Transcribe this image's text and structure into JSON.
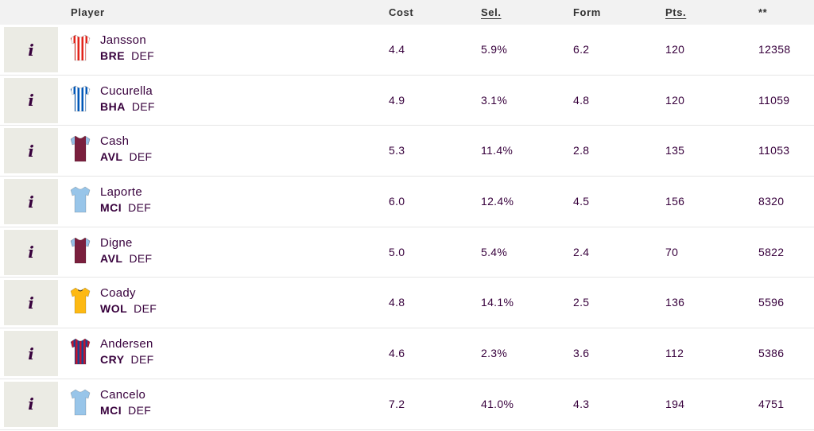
{
  "header": {
    "player": "Player",
    "cost": "Cost",
    "sel": "Sel.",
    "form": "Form",
    "pts": "Pts.",
    "sort": "**"
  },
  "info_label": "i",
  "rows": [
    {
      "name": "Jansson",
      "team": "BRE",
      "pos": "DEF",
      "cost": "4.4",
      "sel": "5.9%",
      "form": "6.2",
      "pts": "120",
      "extra": "12358",
      "kit": "stripes",
      "c1": "#e2231a",
      "c2": "#ffffff"
    },
    {
      "name": "Cucurella",
      "team": "BHA",
      "pos": "DEF",
      "cost": "4.9",
      "sel": "3.1%",
      "form": "4.8",
      "pts": "120",
      "extra": "11059",
      "kit": "stripes",
      "c1": "#0057b8",
      "c2": "#ffffff"
    },
    {
      "name": "Cash",
      "team": "AVL",
      "pos": "DEF",
      "cost": "5.3",
      "sel": "11.4%",
      "form": "2.8",
      "pts": "135",
      "extra": "11053",
      "kit": "sleeves",
      "c1": "#7a1f3d",
      "c2": "#95bfe5"
    },
    {
      "name": "Laporte",
      "team": "MCI",
      "pos": "DEF",
      "cost": "6.0",
      "sel": "12.4%",
      "form": "4.5",
      "pts": "156",
      "extra": "8320",
      "kit": "plain",
      "c1": "#98c5e9",
      "c2": "#98c5e9"
    },
    {
      "name": "Digne",
      "team": "AVL",
      "pos": "DEF",
      "cost": "5.0",
      "sel": "5.4%",
      "form": "2.4",
      "pts": "70",
      "extra": "5822",
      "kit": "sleeves",
      "c1": "#7a1f3d",
      "c2": "#95bfe5"
    },
    {
      "name": "Coady",
      "team": "WOL",
      "pos": "DEF",
      "cost": "4.8",
      "sel": "14.1%",
      "form": "2.5",
      "pts": "136",
      "extra": "5596",
      "kit": "plain",
      "c1": "#fdb913",
      "c2": "#231f20"
    },
    {
      "name": "Andersen",
      "team": "CRY",
      "pos": "DEF",
      "cost": "4.6",
      "sel": "2.3%",
      "form": "3.6",
      "pts": "112",
      "extra": "5386",
      "kit": "stripes",
      "c1": "#1b458f",
      "c2": "#c4122e"
    },
    {
      "name": "Cancelo",
      "team": "MCI",
      "pos": "DEF",
      "cost": "7.2",
      "sel": "41.0%",
      "form": "4.3",
      "pts": "194",
      "extra": "4751",
      "kit": "plain",
      "c1": "#98c5e9",
      "c2": "#98c5e9"
    }
  ]
}
